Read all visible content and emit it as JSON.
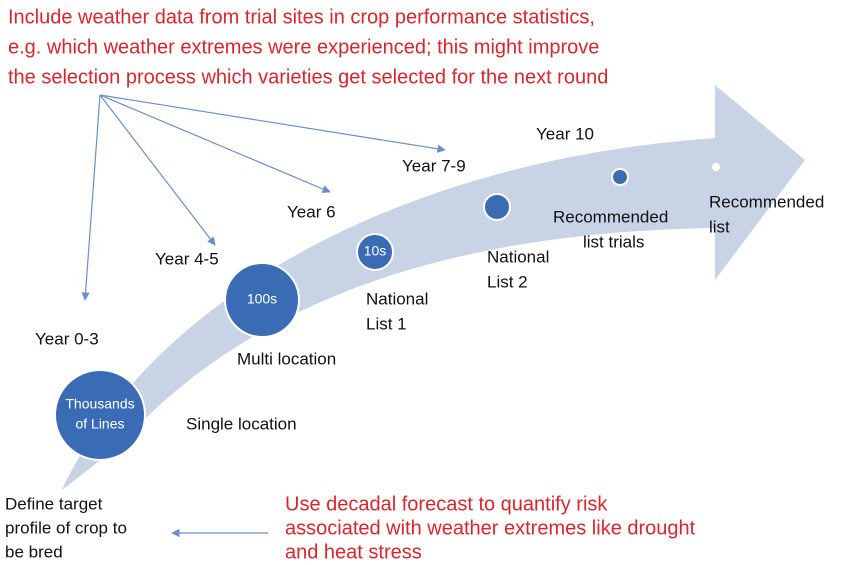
{
  "top_annotation": {
    "lines": [
      "Include weather data from trial sites in crop performance statistics,",
      "e.g. which weather extremes were experienced; this might improve",
      "the selection process which varieties get selected for the next round"
    ]
  },
  "bottom_annotation": {
    "lines": [
      "Use decadal forecast to quantify risk",
      "associated with weather extremes like drought",
      "and heat stress"
    ]
  },
  "target": {
    "lines": [
      "Define target",
      "profile of crop to",
      "be bred"
    ]
  },
  "stages": [
    {
      "year": "Year 0-3",
      "circle_text": [
        "Thousands",
        "of Lines"
      ],
      "label": [
        "Single location"
      ]
    },
    {
      "year": "Year 4-5",
      "circle_text": [
        "100s"
      ],
      "label": [
        "Multi location"
      ]
    },
    {
      "year": "Year 6",
      "circle_text": [
        "10s"
      ],
      "label": [
        "National",
        "List 1"
      ]
    },
    {
      "year": "Year 7-9",
      "label": [
        "National",
        "List 2"
      ]
    },
    {
      "year": "Year 10",
      "label": [
        "Recommended",
        "list trials"
      ]
    },
    {
      "label": [
        "Recommended",
        "list"
      ]
    }
  ]
}
